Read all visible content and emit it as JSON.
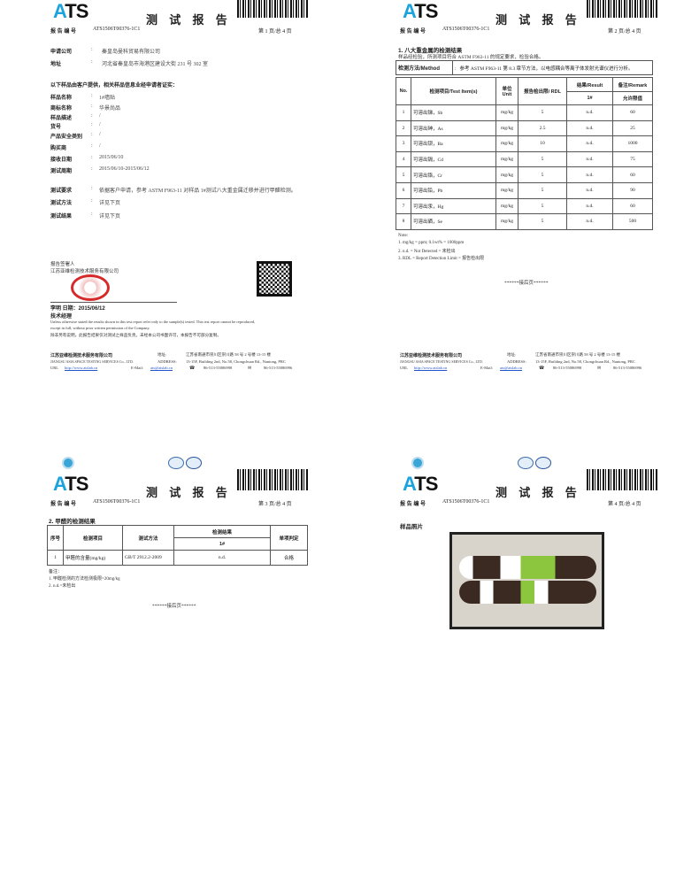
{
  "brand": {
    "logo_text": "ATS",
    "watermark": "ATS",
    "accent": "#1aa3dc"
  },
  "header": {
    "title": "测 试 报 告",
    "report_no_label": "报 告 编 号",
    "report_no": "ATS1506T00376-1C1"
  },
  "pages": [
    {
      "page_indicator": "第 1 页/总 4 页"
    },
    {
      "page_indicator": "第 2 页/总 4 页"
    },
    {
      "page_indicator": "第 3 页/总 4 页"
    },
    {
      "page_indicator": "第 4 页/总 4 页"
    }
  ],
  "page1": {
    "applicant": {
      "label": "申请公司",
      "value": "秦皇岛曼科贸易有限公司"
    },
    "address": {
      "label": "地址",
      "value": "河北省秦皇岛市海港区建设大街 231 号 302 室"
    },
    "notice": "以下样品由客户提供，相关样品信息业经申请者证实：",
    "fields": [
      {
        "label": "样品名称",
        "value": "1#墙贴"
      },
      {
        "label": "商标名称",
        "value": "华景尚品"
      },
      {
        "label": "样品描述",
        "value": "/"
      },
      {
        "label": "货号",
        "value": "/"
      },
      {
        "label": "产品安全类别",
        "value": "/"
      },
      {
        "label": "购买商",
        "value": "/"
      },
      {
        "label": "接收日期",
        "value": "2015/06/10"
      },
      {
        "label": "测试周期",
        "value": "2015/06/10-2015/06/12"
      }
    ],
    "test_fields": [
      {
        "label": "测试要求",
        "value": "依据客户申请，参考 ASTM F963-11 对样品 1#测试八大重金属迁移并进行甲醛检测。"
      },
      {
        "label": "测试方法",
        "value": "详见下页"
      },
      {
        "label": "测试结果",
        "value": "详见下页"
      }
    ],
    "colon": ":",
    "signatory_label": "报告签署人",
    "signatory_company": "江苏亚维检测技术服务有限公司",
    "signer": "李明    日期：2015/06/12",
    "signer_title": "技术经理",
    "disclaimer_en_1": "Unless otherwise stated the results shown in this test report refer only to the sample(s) tested. This test report cannot be reproduced,",
    "disclaimer_en_2": "except in full, without prior written permission of the Company.",
    "disclaimer_cn": "除非另有说明，此报告结果仅对测试之样品负责。未经本公司书面许可，本报告不可部分复制。"
  },
  "footer": {
    "company_cn": "江苏亚维检测技术服务有限公司",
    "company_en": "JIANGSU ASIA SPACE TESTING SERVICES Co., LTD.",
    "url_label": "URL",
    "url": "http://www.atslab.cn",
    "email_label": "E-Mail:",
    "email": "ats@atslab.cn",
    "address_label_cn": "地址:",
    "address_cn": "江苏省南通市崇川区崇川路 58 号 2 号楼 13-15 楼",
    "address_label_en": "ADDRESS:",
    "address_en": "13-15F, Building 2nd, No.58, Chongchuan Rd., Nantong, PRC",
    "tel": "86-513-55086998",
    "fax": "86-513-55086996"
  },
  "page2": {
    "section_title": "1.  八大重金属的检测结果",
    "conclusion": "样品经检验，所测项目符合 ASTM F963-11 的规定要求，检验合格。",
    "method_label": "检测方法/Method",
    "method_value": "参考 ASTM F963-11  第 8.3 章节方法，以电感耦合等离子体发射光谱仪进行分析。",
    "columns": {
      "no": "No.",
      "item": "检测项目/Test Item(s)",
      "unit": "单位 Unit",
      "rdl": "报告检出限/ RDL",
      "result": "结果/Result",
      "result_sub": "1#",
      "remark": "备注/Remark",
      "remark_sub": "允许限值"
    },
    "rows": [
      {
        "no": "1",
        "item": "可溶出锑，Sb",
        "unit": "mg/kg",
        "rdl": "5",
        "result": "n.d.",
        "limit": "60"
      },
      {
        "no": "2",
        "item": "可溶出砷，As",
        "unit": "mg/kg",
        "rdl": "2.5",
        "result": "n.d.",
        "limit": "25"
      },
      {
        "no": "3",
        "item": "可溶出钡，Ba",
        "unit": "mg/kg",
        "rdl": "10",
        "result": "n.d.",
        "limit": "1000"
      },
      {
        "no": "4",
        "item": "可溶出镉，Cd",
        "unit": "mg/kg",
        "rdl": "5",
        "result": "n.d.",
        "limit": "75"
      },
      {
        "no": "5",
        "item": "可溶出铬，Cr",
        "unit": "mg/kg",
        "rdl": "5",
        "result": "n.d.",
        "limit": "60"
      },
      {
        "no": "6",
        "item": "可溶出铅，Pb",
        "unit": "mg/kg",
        "rdl": "5",
        "result": "n.d.",
        "limit": "90"
      },
      {
        "no": "7",
        "item": "可溶出汞，Hg",
        "unit": "mg/kg",
        "rdl": "5",
        "result": "n.d.",
        "limit": "60"
      },
      {
        "no": "8",
        "item": "可溶出硒，Se",
        "unit": "mg/kg",
        "rdl": "5",
        "result": "n.d.",
        "limit": "500"
      }
    ],
    "notes": [
      "Note:",
      "1. mg/kg = ppm; 0.1wt% = 1000ppm",
      "2. n.d. = Not Detected =  未检出",
      "3. RDL = Report Detection Limit =  报告检出限"
    ],
    "continued": "******接后页******"
  },
  "page3": {
    "section_title": "2.  甲醛的检测结果",
    "columns": {
      "no": "序号",
      "item": "检测项目",
      "method": "测试方法",
      "result": "检测结果",
      "result_sub": "1#",
      "verdict": "单项判定"
    },
    "rows": [
      {
        "no": "1",
        "item": "甲醛的含量(mg/kg)",
        "method": "GB/T 2912.2-2009",
        "result": "n.d.",
        "verdict": "合格"
      }
    ],
    "notes": [
      "备注：",
      "1.    甲醛检测的方法检测极限=20mg/kg",
      "2.    n.d.=未检出"
    ],
    "continued": "******接后页******"
  },
  "page4": {
    "section_title": "样品照片"
  }
}
